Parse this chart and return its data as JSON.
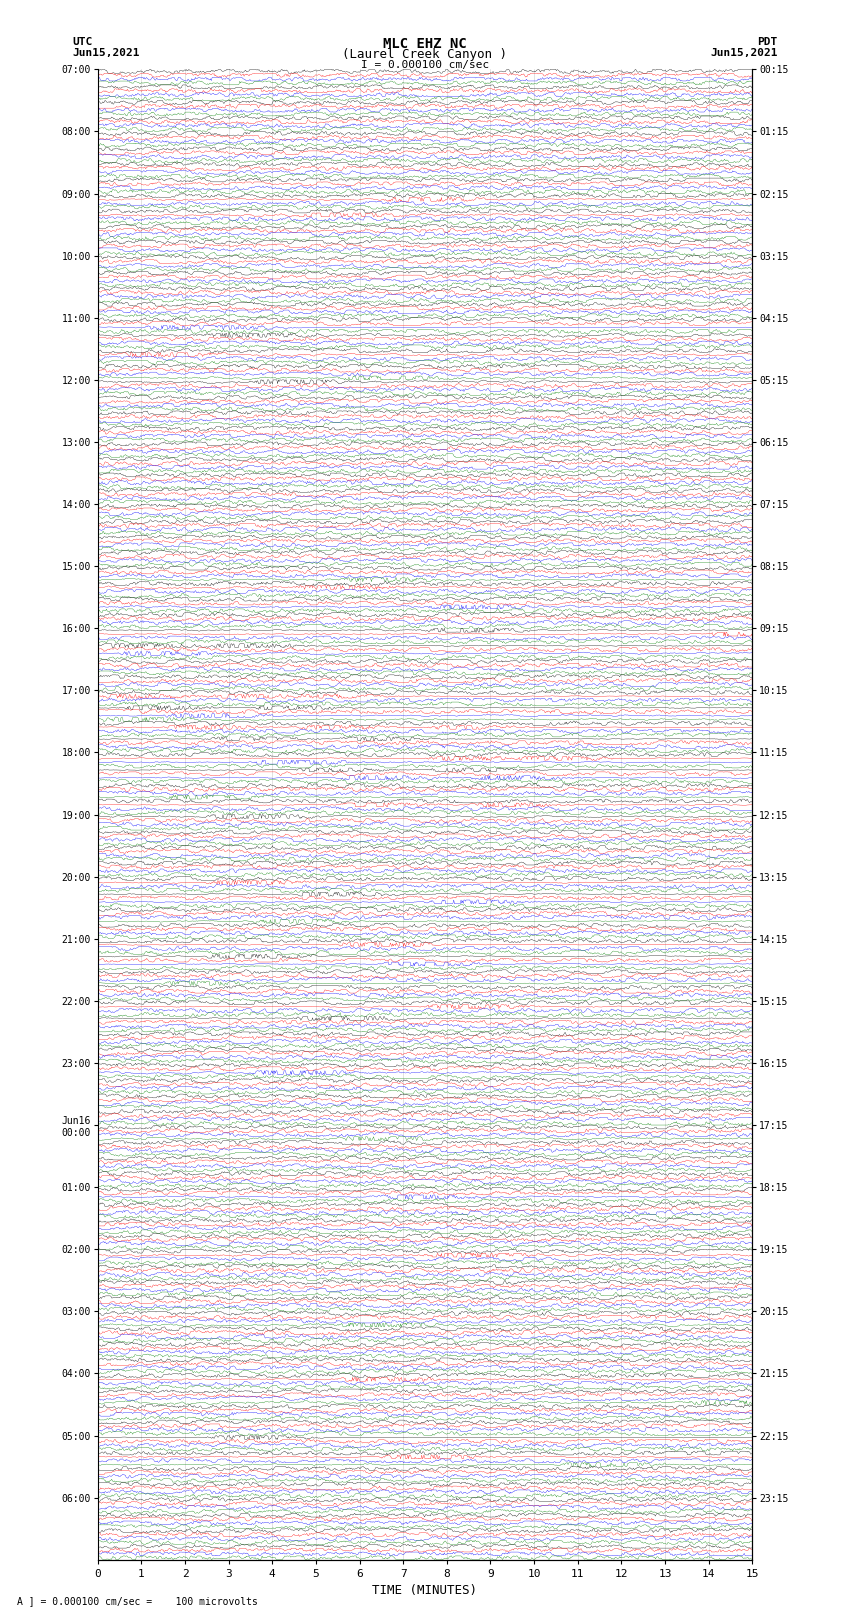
{
  "title_line1": "MLC EHZ NC",
  "title_line2": "(Laurel Creek Canyon )",
  "title_line3": "I = 0.000100 cm/sec",
  "left_label_line1": "UTC",
  "left_label_line2": "Jun15,2021",
  "right_label_line1": "PDT",
  "right_label_line2": "Jun15,2021",
  "xlabel": "TIME (MINUTES)",
  "bottom_note": "A ] = 0.000100 cm/sec =    100 microvolts",
  "xlabel_ticks": [
    0,
    1,
    2,
    3,
    4,
    5,
    6,
    7,
    8,
    9,
    10,
    11,
    12,
    13,
    14,
    15
  ],
  "trace_colors": [
    "black",
    "red",
    "blue",
    "green"
  ],
  "utc_times_left": [
    "07:00",
    "",
    "",
    "",
    "08:00",
    "",
    "",
    "",
    "09:00",
    "",
    "",
    "",
    "10:00",
    "",
    "",
    "",
    "11:00",
    "",
    "",
    "",
    "12:00",
    "",
    "",
    "",
    "13:00",
    "",
    "",
    "",
    "14:00",
    "",
    "",
    "",
    "15:00",
    "",
    "",
    "",
    "16:00",
    "",
    "",
    "",
    "17:00",
    "",
    "",
    "",
    "18:00",
    "",
    "",
    "",
    "19:00",
    "",
    "",
    "",
    "20:00",
    "",
    "",
    "",
    "21:00",
    "",
    "",
    "",
    "22:00",
    "",
    "",
    "",
    "23:00",
    "",
    "",
    "",
    "Jun16\n00:00",
    "",
    "",
    "",
    "01:00",
    "",
    "",
    "",
    "02:00",
    "",
    "",
    "",
    "03:00",
    "",
    "",
    "",
    "04:00",
    "",
    "",
    "",
    "05:00",
    "",
    "",
    "",
    "06:00",
    "",
    "",
    ""
  ],
  "pdt_times_right": [
    "00:15",
    "",
    "",
    "",
    "01:15",
    "",
    "",
    "",
    "02:15",
    "",
    "",
    "",
    "03:15",
    "",
    "",
    "",
    "04:15",
    "",
    "",
    "",
    "05:15",
    "",
    "",
    "",
    "06:15",
    "",
    "",
    "",
    "07:15",
    "",
    "",
    "",
    "08:15",
    "",
    "",
    "",
    "09:15",
    "",
    "",
    "",
    "10:15",
    "",
    "",
    "",
    "11:15",
    "",
    "",
    "",
    "12:15",
    "",
    "",
    "",
    "13:15",
    "",
    "",
    "",
    "14:15",
    "",
    "",
    "",
    "15:15",
    "",
    "",
    "",
    "16:15",
    "",
    "",
    "",
    "17:15",
    "",
    "",
    "",
    "18:15",
    "",
    "",
    "",
    "19:15",
    "",
    "",
    "",
    "20:15",
    "",
    "",
    "",
    "21:15",
    "",
    "",
    "",
    "22:15",
    "",
    "",
    "",
    "23:15",
    "",
    "",
    ""
  ],
  "n_rows": 96,
  "n_traces_per_row": 4,
  "minute_duration": 15,
  "n_samples": 900,
  "background_color": "white",
  "grid_color": "#aaaaaa",
  "amplitude_scale": 0.38
}
